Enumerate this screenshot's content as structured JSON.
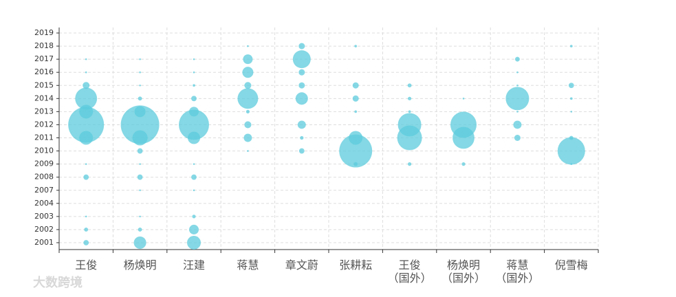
{
  "chart_data": {
    "type": "bubble",
    "watermark": "大数跨境",
    "categories": [
      "王俊",
      "杨焕明",
      "汪建",
      "蒋慧",
      "章文蔚",
      "张耕耘",
      "王俊\n（国外）",
      "杨焕明\n（国外）",
      "蒋慧\n（国外）",
      "倪雪梅"
    ],
    "ycategories": [
      "2001",
      "2002",
      "2003",
      "2004",
      "2007",
      "2008",
      "2009",
      "2010",
      "2011",
      "2012",
      "2013",
      "2014",
      "2015",
      "2016",
      "2017",
      "2018",
      "2019"
    ],
    "color": "#5ccbdc",
    "grid": true,
    "values": [
      [
        9,
        5,
        1,
        null,
        null,
        9,
        1,
        null,
        59,
        400,
        59,
        150,
        15,
        1,
        1,
        null,
        null
      ],
      [
        48,
        5,
        1,
        null,
        1,
        9,
        1,
        9,
        72,
        464,
        38,
        5,
        1,
        1,
        1,
        null,
        null
      ],
      [
        59,
        29,
        4,
        null,
        1,
        9,
        1,
        null,
        48,
        286,
        29,
        9,
        2,
        1,
        1,
        null,
        null
      ],
      [
        null,
        null,
        null,
        null,
        null,
        null,
        null,
        1,
        21,
        15,
        4,
        133,
        15,
        38,
        29,
        1,
        null
      ],
      [
        null,
        null,
        null,
        null,
        null,
        null,
        null,
        9,
        4,
        21,
        null,
        48,
        12,
        12,
        100,
        12,
        null
      ],
      [
        null,
        null,
        null,
        null,
        null,
        null,
        5,
        340,
        59,
        null,
        2,
        12,
        12,
        null,
        null,
        2,
        null
      ],
      [
        null,
        null,
        null,
        null,
        null,
        null,
        4,
        null,
        192,
        171,
        2,
        4,
        5,
        null,
        null,
        null,
        null
      ],
      [
        null,
        null,
        null,
        null,
        null,
        null,
        4,
        null,
        150,
        214,
        null,
        1,
        null,
        null,
        null,
        null,
        null
      ],
      [
        null,
        null,
        null,
        null,
        null,
        null,
        null,
        null,
        12,
        21,
        1,
        171,
        1,
        1,
        7,
        null,
        null
      ],
      [
        null,
        null,
        null,
        null,
        null,
        null,
        1,
        237,
        5,
        null,
        1,
        2,
        9,
        null,
        null,
        2,
        null
      ]
    ]
  }
}
